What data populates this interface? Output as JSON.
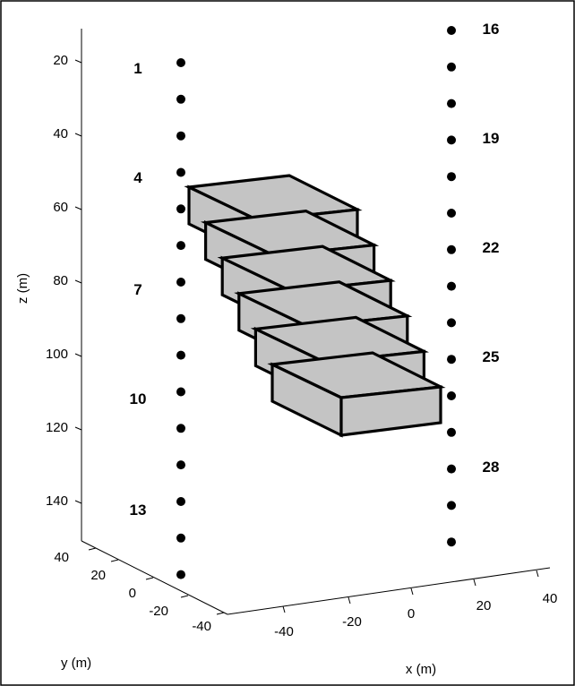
{
  "diagram": {
    "z_axis": {
      "label": "z (m)",
      "ticks": [
        "20",
        "40",
        "60",
        "80",
        "100",
        "120",
        "140"
      ]
    },
    "y_axis": {
      "label": "y (m)",
      "ticks": [
        "40",
        "20",
        "0",
        "-20",
        "-40"
      ]
    },
    "x_axis": {
      "label": "x (m)",
      "ticks": [
        "-40",
        "-20",
        "0",
        "20",
        "40"
      ]
    },
    "left_column_labels": [
      "1",
      "4",
      "7",
      "10",
      "13"
    ],
    "right_column_labels": [
      "16",
      "19",
      "22",
      "25",
      "28"
    ]
  }
}
